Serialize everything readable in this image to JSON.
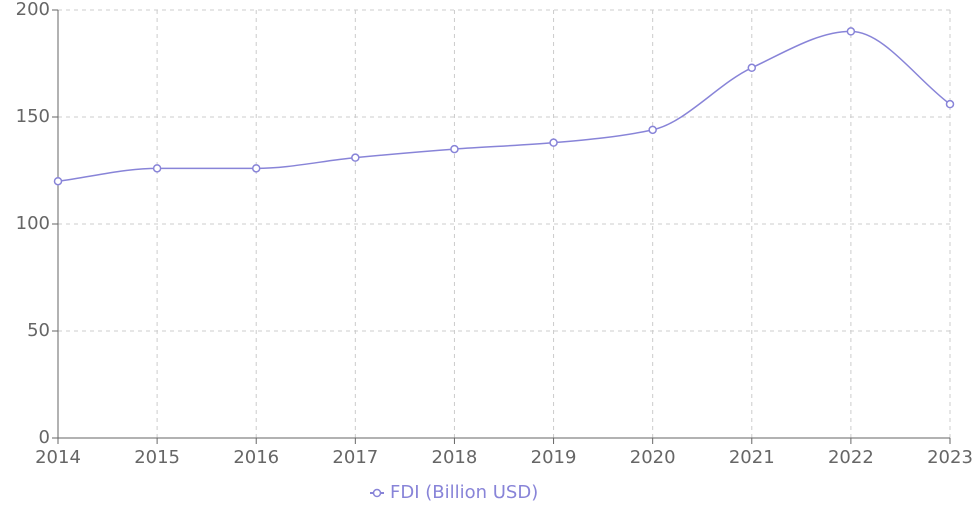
{
  "chart_data": {
    "type": "line",
    "categories": [
      "2014",
      "2015",
      "2016",
      "2017",
      "2018",
      "2019",
      "2020",
      "2021",
      "2022",
      "2023"
    ],
    "series": [
      {
        "name": "FDI (Billion USD)",
        "color": "#8884d8",
        "values": [
          120,
          126,
          126,
          131,
          135,
          138,
          144,
          173,
          190,
          156
        ]
      }
    ],
    "ylim": [
      0,
      200
    ],
    "yticks": [
      0,
      50,
      100,
      150,
      200
    ],
    "grid": true,
    "legend": "bottom"
  }
}
